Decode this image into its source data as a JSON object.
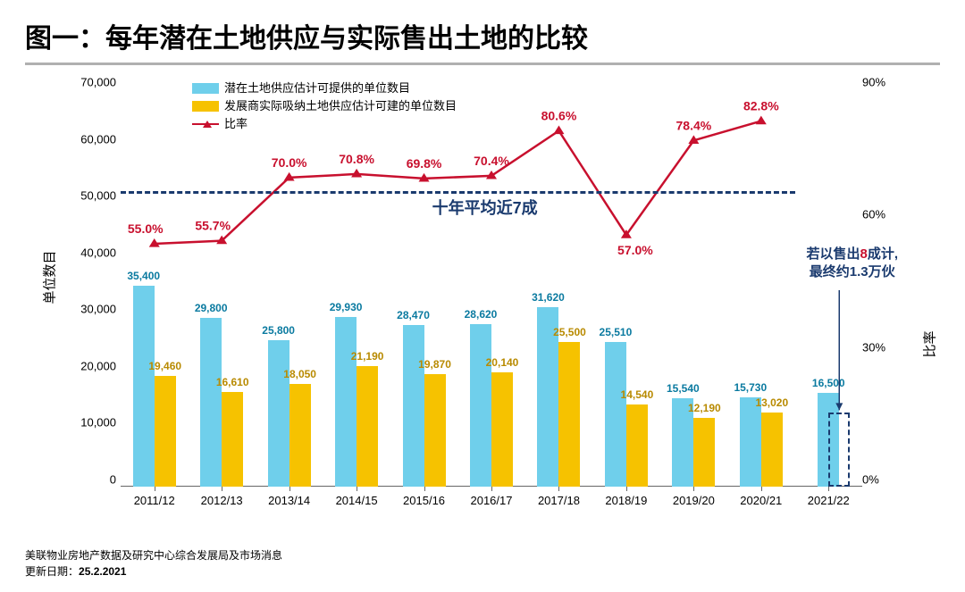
{
  "title": "图一：每年潜在土地供应与实际售出土地的比较",
  "footer_source": "美联物业房地产数据及研究中心综合发展局及市场消息",
  "footer_date_label": "更新日期：",
  "footer_date": "25.2.2021",
  "legend": {
    "series1": "潜在土地供应估计可提供的单位数目",
    "series2": "发展商实际吸纳土地供应估计可建的单位数目",
    "series3": "比率"
  },
  "axis": {
    "y_left_label": "单位数目",
    "y_right_label": "比率",
    "y_left_max": 70000,
    "y_left_step": 10000,
    "y_left_ticks": [
      "0",
      "10,000",
      "20,000",
      "30,000",
      "40,000",
      "50,000",
      "60,000",
      "70,000"
    ],
    "y_right_max": 90,
    "y_right_step": 30,
    "y_right_ticks": [
      "0%",
      "30%",
      "60%",
      "90%"
    ]
  },
  "categories": [
    "2011/12",
    "2012/13",
    "2013/14",
    "2014/15",
    "2015/16",
    "2016/17",
    "2017/18",
    "2018/19",
    "2019/20",
    "2020/21",
    "2021/22"
  ],
  "series1_values": [
    35400,
    29800,
    25800,
    29930,
    28470,
    28620,
    31620,
    25510,
    15540,
    15730,
    16500
  ],
  "series1_labels": [
    "35,400",
    "29,800",
    "25,800",
    "29,930",
    "28,470",
    "28,620",
    "31,620",
    "25,510",
    "15,540",
    "15,730",
    "16,500"
  ],
  "series2_values": [
    19460,
    16610,
    18050,
    21190,
    19870,
    20140,
    25500,
    14540,
    12190,
    13020,
    null
  ],
  "series2_labels": [
    "19,460",
    "16,610",
    "18,050",
    "21,190",
    "19,870",
    "20,140",
    "25,500",
    "14,540",
    "12,190",
    "13,020",
    ""
  ],
  "ratio_values": [
    55.0,
    55.7,
    70.0,
    70.8,
    69.8,
    70.4,
    80.6,
    57.0,
    78.4,
    82.8
  ],
  "ratio_labels": [
    "55.0%",
    "55.7%",
    "70.0%",
    "70.8%",
    "69.8%",
    "70.4%",
    "80.6%",
    "57.0%",
    "78.4%",
    "82.8%"
  ],
  "avg_line_value": 67,
  "avg_line_label": "十年平均近7成",
  "annotation_text_1": "若以售出8成计,",
  "annotation_text_2": "最终约1.3万伙",
  "colors": {
    "series1_bar": "#6fcfeb",
    "series2_bar": "#f6c200",
    "ratio_line": "#c8102e",
    "avg_line": "#1a3a6e",
    "annotation": "#1a3a6e",
    "highlight_8": "#c8102e",
    "series1_label": "#0a7aa0",
    "series2_label": "#b88a00",
    "title_underline": "#b0b0b0"
  },
  "projected_bar_value": 13000
}
